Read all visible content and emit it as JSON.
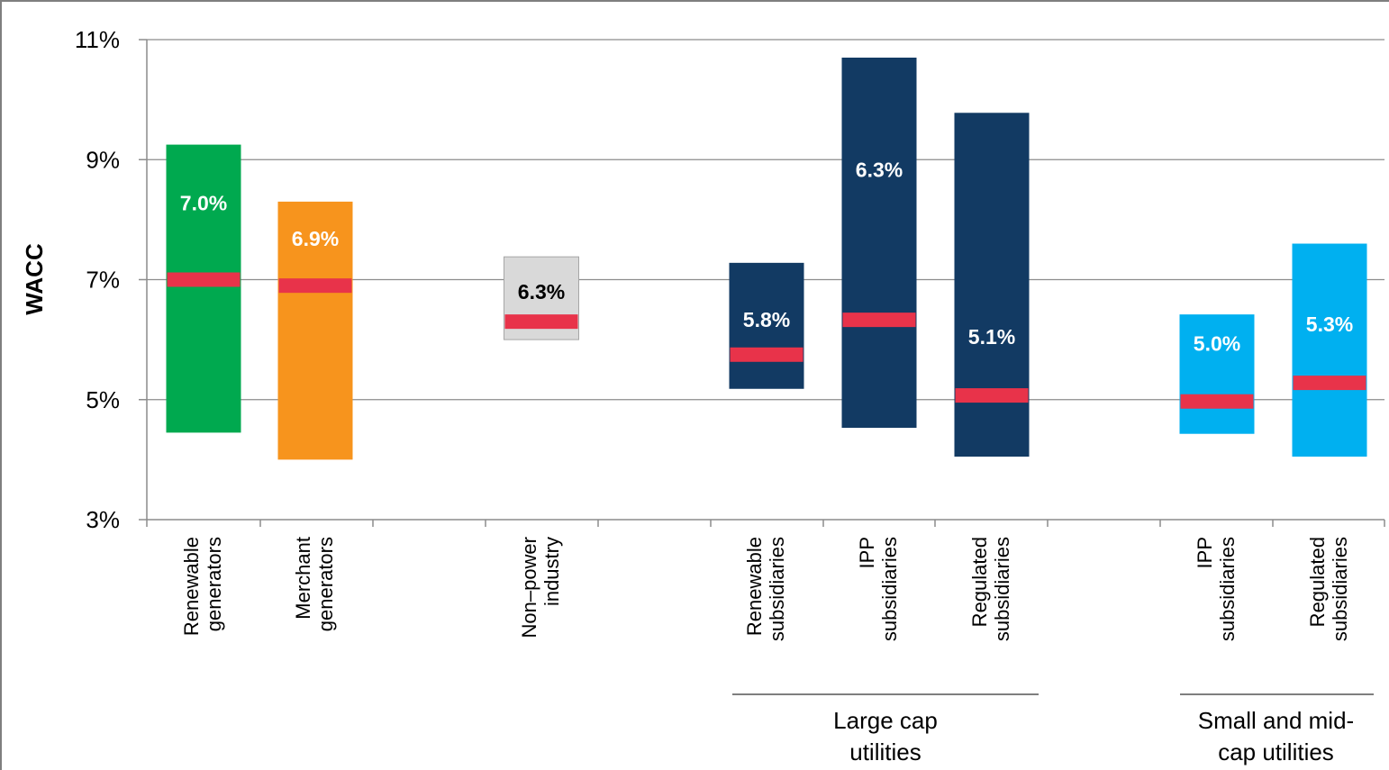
{
  "chart_data": {
    "type": "bar",
    "ylabel": "WACC",
    "ylim": [
      3,
      11
    ],
    "yticks": [
      "3%",
      "5%",
      "7%",
      "9%",
      "11%"
    ],
    "grid": true,
    "series_note": "floating range bars with median marker",
    "categories": [
      {
        "label": [
          "Renewable",
          "generators"
        ],
        "low": 4.45,
        "high": 9.25,
        "median": 7.0,
        "median_label": "7.0%",
        "color": "#00a94f",
        "label_color": "#ffffff"
      },
      {
        "label": [
          "Merchant",
          "generators"
        ],
        "low": 4.0,
        "high": 8.3,
        "median": 6.9,
        "median_label": "6.9%",
        "color": "#f7941d",
        "label_color": "#ffffff"
      },
      {
        "label": [
          "Non–power",
          "industry"
        ],
        "low": 6.0,
        "high": 7.38,
        "median": 6.3,
        "median_label": "6.3%",
        "color": "#d9d9d9",
        "label_color": "#000000"
      },
      {
        "label": [
          "Renewable",
          "subsidiaries"
        ],
        "low": 5.18,
        "high": 7.28,
        "median": 5.75,
        "median_label": "5.8%",
        "color": "#123a63",
        "label_color": "#ffffff"
      },
      {
        "label": [
          "IPP",
          "subsidiaries"
        ],
        "low": 4.53,
        "high": 10.7,
        "median": 6.33,
        "median_label": "6.3%",
        "color": "#123a63",
        "label_color": "#ffffff"
      },
      {
        "label": [
          "Regulated",
          "subsidiaries"
        ],
        "low": 4.05,
        "high": 9.78,
        "median": 5.07,
        "median_label": "5.1%",
        "color": "#123a63",
        "label_color": "#ffffff"
      },
      {
        "label": [
          "IPP",
          "subsidiaries"
        ],
        "low": 4.43,
        "high": 6.42,
        "median": 4.97,
        "median_label": "5.0%",
        "color": "#00b0f0",
        "label_color": "#ffffff"
      },
      {
        "label": [
          "Regulated",
          "subsidiaries"
        ],
        "low": 4.05,
        "high": 7.6,
        "median": 5.28,
        "median_label": "5.3%",
        "color": "#00b0f0",
        "label_color": "#ffffff"
      }
    ],
    "groups": [
      {
        "label": [
          "Large cap",
          "utilities"
        ],
        "categories": [
          3,
          4,
          5
        ]
      },
      {
        "label": [
          "Small and mid-",
          "cap utilities"
        ],
        "categories": [
          6,
          7
        ]
      }
    ],
    "median_color": "#e8334a"
  }
}
